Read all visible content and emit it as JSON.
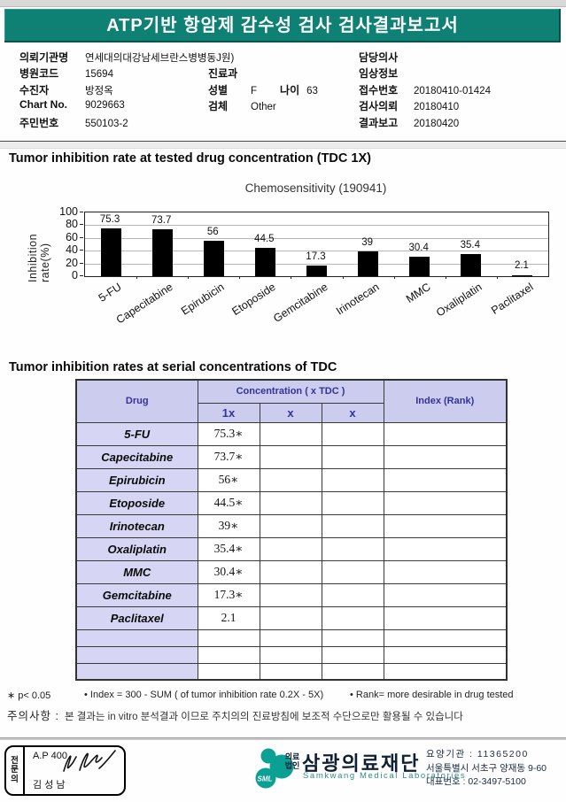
{
  "header": {
    "title": "ATP기반 항암제 감수성 검사 검사결과보고서"
  },
  "patient": {
    "left": [
      {
        "label": "의뢰기관명",
        "value": "연세대의대강남세브란스병병동J원)"
      },
      {
        "label": "병원코드",
        "value": "15694"
      },
      {
        "label": "수진자",
        "value": "방정옥"
      },
      {
        "label": "Chart No.",
        "value": "9029663"
      },
      {
        "label": "주민번호",
        "value": "550103-2"
      }
    ],
    "middle": [
      {
        "label": "진료과",
        "value": ""
      },
      {
        "label": "성별",
        "value": "F",
        "label2": "나이",
        "value2": "63"
      },
      {
        "label": "검체",
        "value": "Other"
      }
    ],
    "right": [
      {
        "label": "담당의사",
        "value": ""
      },
      {
        "label": "임상정보",
        "value": ""
      },
      {
        "label": "접수번호",
        "value": "20180410-01424"
      },
      {
        "label": "검사의뢰",
        "value": "20180410"
      },
      {
        "label": "결과보고",
        "value": "20180420"
      }
    ]
  },
  "sections": {
    "chart_heading": "Tumor inhibition rate at tested drug concentration (TDC 1X)",
    "table_heading": "Tumor inhibition rates at serial concentrations of TDC"
  },
  "chart_data": {
    "type": "bar",
    "title": "Chemosensitivity (190941)",
    "categories": [
      "5-FU",
      "Capecitabine",
      "Epirubicin",
      "Etoposide",
      "Gemcitabine",
      "Irinotecan",
      "MMC",
      "Oxaliplatin",
      "Paclitaxel"
    ],
    "values": [
      75.3,
      73.7,
      56,
      44.5,
      17.3,
      39,
      30.4,
      35.4,
      2.1
    ],
    "xlabel": "",
    "ylabel": "Inhibition rate(%)",
    "ylim": [
      0,
      100
    ],
    "yticks": [
      0,
      20,
      40,
      60,
      80,
      100
    ],
    "grid": true,
    "legend": "none",
    "bar_color": "#000000"
  },
  "table": {
    "col_drug": "Drug",
    "col_concentration": "Concentration ( x TDC )",
    "subcols": [
      "1x",
      "x",
      "x"
    ],
    "col_index": "Index (Rank)",
    "rows": [
      {
        "drug": "5-FU",
        "c1": "75.3∗",
        "c2": "",
        "c3": "",
        "index": ""
      },
      {
        "drug": "Capecitabine",
        "c1": "73.7∗",
        "c2": "",
        "c3": "",
        "index": ""
      },
      {
        "drug": "Epirubicin",
        "c1": "56∗",
        "c2": "",
        "c3": "",
        "index": ""
      },
      {
        "drug": "Etoposide",
        "c1": "44.5∗",
        "c2": "",
        "c3": "",
        "index": ""
      },
      {
        "drug": "Irinotecan",
        "c1": "39∗",
        "c2": "",
        "c3": "",
        "index": ""
      },
      {
        "drug": "Oxaliplatin",
        "c1": "35.4∗",
        "c2": "",
        "c3": "",
        "index": ""
      },
      {
        "drug": "MMC",
        "c1": "30.4∗",
        "c2": "",
        "c3": "",
        "index": ""
      },
      {
        "drug": "Gemcitabine",
        "c1": "17.3∗",
        "c2": "",
        "c3": "",
        "index": ""
      },
      {
        "drug": "Paclitaxel",
        "c1": "2.1",
        "c2": "",
        "c3": "",
        "index": ""
      }
    ],
    "empty_rows": 3
  },
  "notes": {
    "note1": "∗ p< 0.05",
    "note2": "• Index = 300 - SUM ( of tumor inhibition rate 0.2X  -  5X)",
    "note3": "• Rank= more desirable in drug tested",
    "caution_label": "주의사항 :",
    "caution_text": "본 결과는 in vitro 분석결과 이므로 주치의의 진료방침에 보조적 수단으로만 활용될 수 있습니다"
  },
  "footer": {
    "stamp_role": "전문의",
    "stamp_line1": "A.P 400",
    "stamp_line2": "김 성 남",
    "logo_mark": "SML",
    "logo_small1": "의료",
    "logo_small2": "법인",
    "logo_name": "삼광의료재단",
    "logo_en": "Samkwang Medical Laboratories",
    "info1": "요양기관 : 11365200",
    "info2": "서울특별시 서초구 양재동 9-60",
    "info3": "대표번호 : 02-3497-5100"
  },
  "colors": {
    "header_teal": "#0e8174",
    "table_header_bg": "#ccccee",
    "table_header_text": "#333399",
    "drug_cell_bg": "#d6d6f4",
    "logo_teal": "#0aa094",
    "bar_black": "#000000"
  }
}
